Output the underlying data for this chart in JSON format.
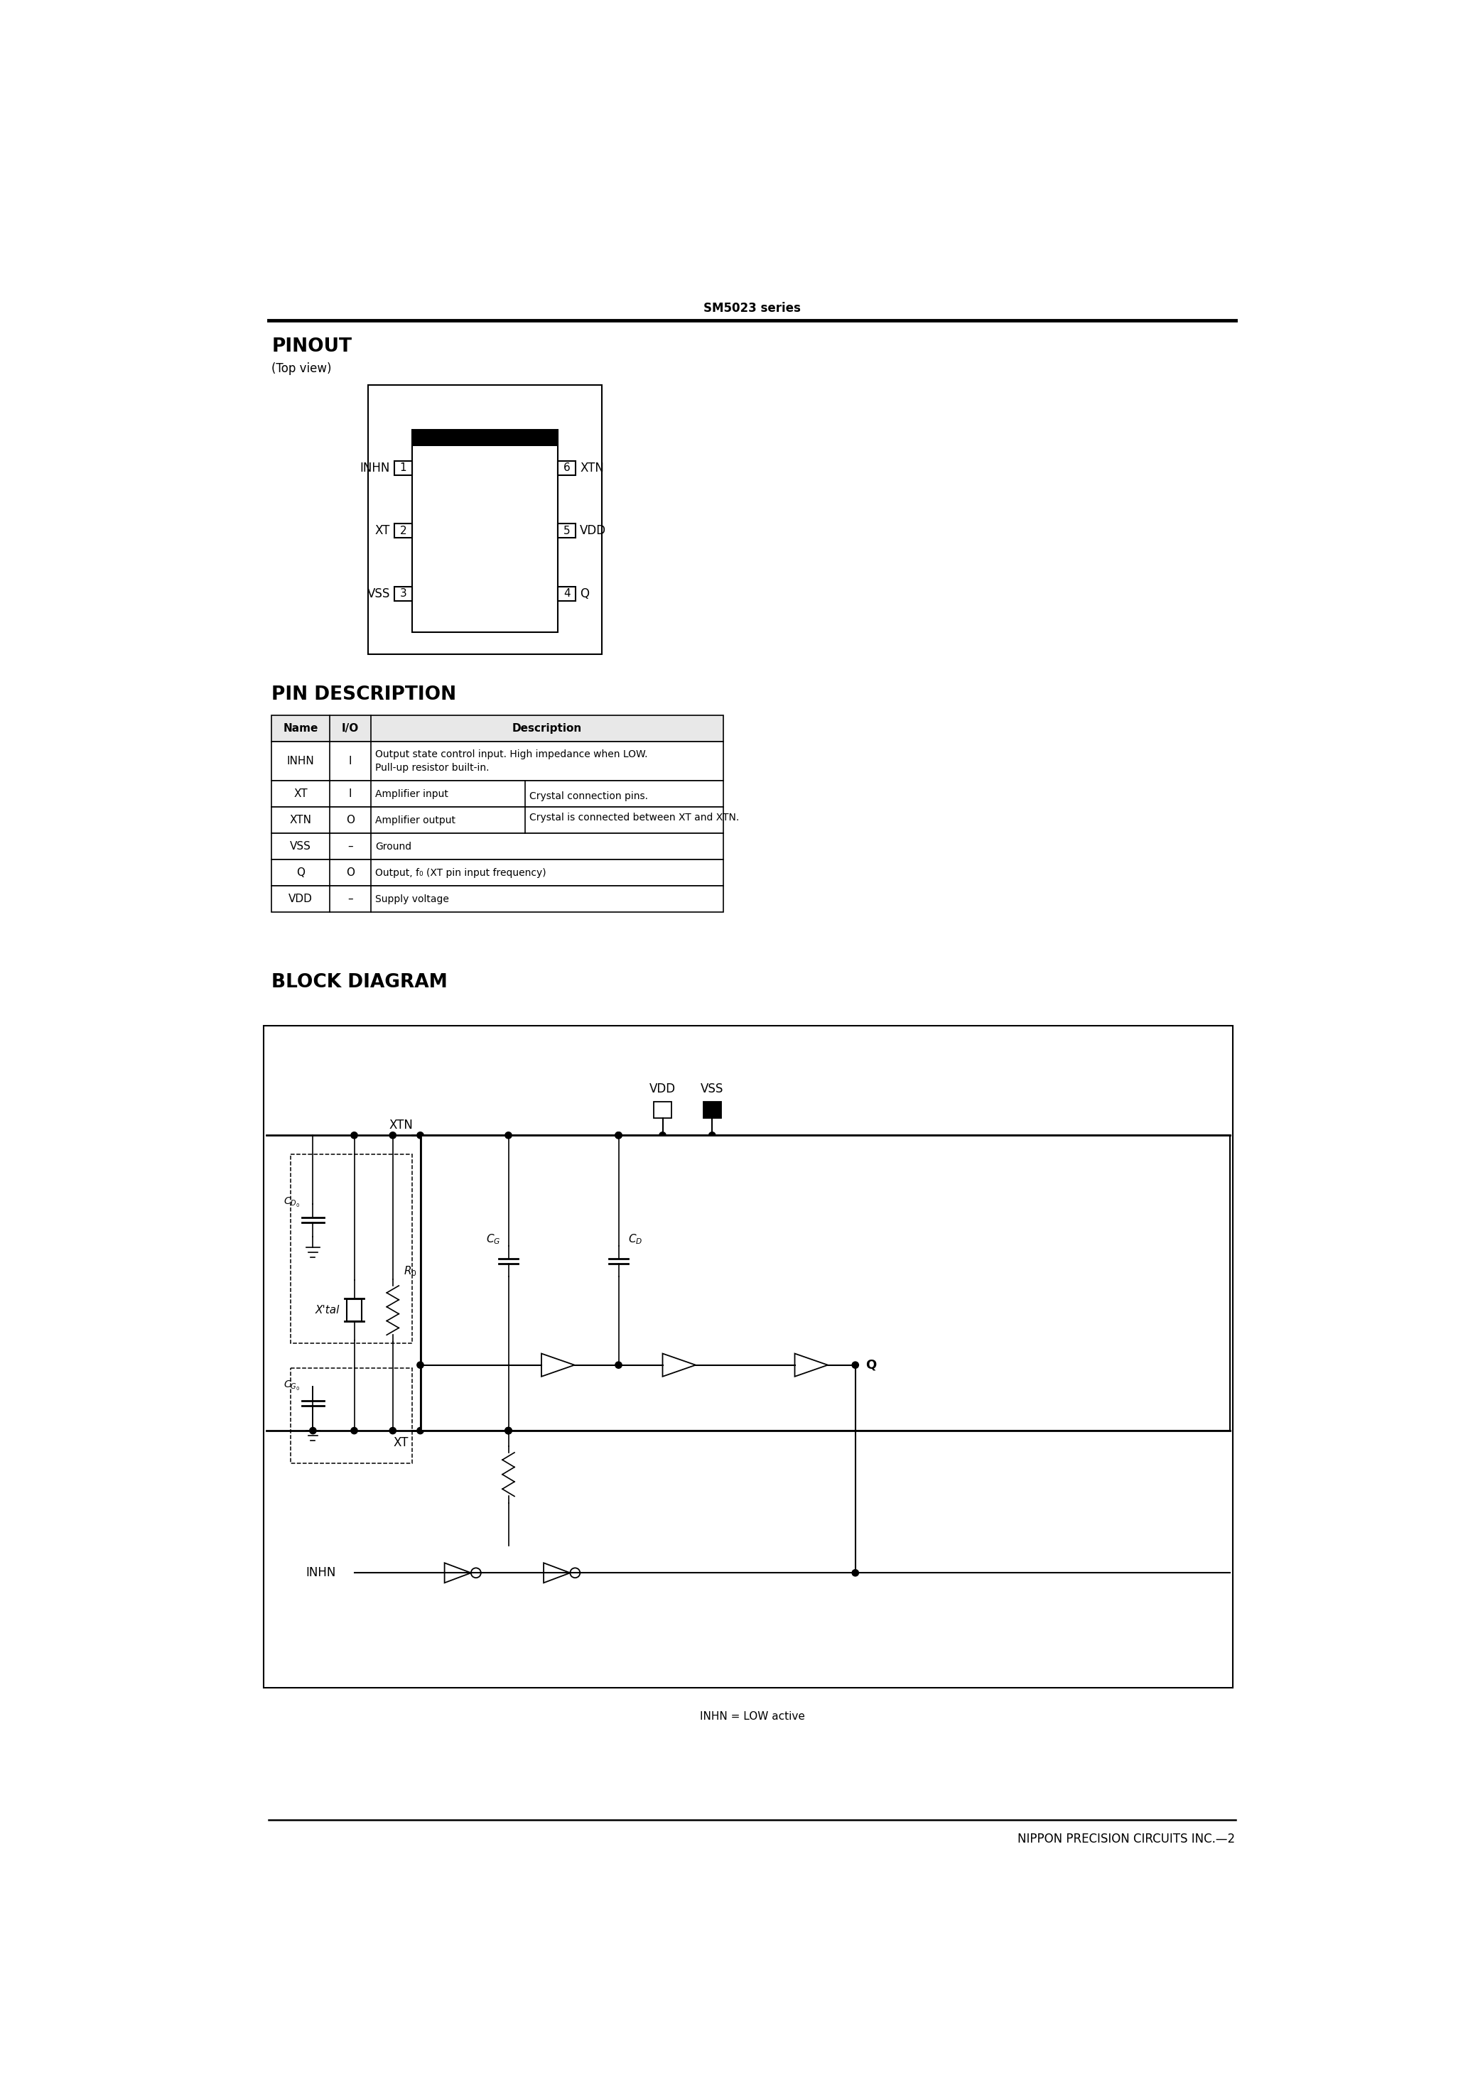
{
  "page_title": "SM5023 series",
  "footer_text": "NIPPON PRECISION CIRCUITS INC.—2",
  "section_pinout": "PINOUT",
  "section_topview": "(Top view)",
  "section_pin_desc": "PIN DESCRIPTION",
  "section_block": "BLOCK DIAGRAM",
  "block_note": "INHN = LOW active",
  "tbl_headers": [
    "Name",
    "I/O",
    "Description"
  ],
  "pin_rows": [
    {
      "name": "INHN",
      "io": "I",
      "desc1": "Output state control input. High impedance when LOW.",
      "desc2": "Pull-up resistor built-in.",
      "crystal": false
    },
    {
      "name": "XT",
      "io": "I",
      "desc1": "Amplifier input",
      "desc2": "",
      "crystal": true
    },
    {
      "name": "XTN",
      "io": "O",
      "desc1": "Amplifier output",
      "desc2": "",
      "crystal": true
    },
    {
      "name": "VSS",
      "io": "–",
      "desc1": "Ground",
      "desc2": "",
      "crystal": false
    },
    {
      "name": "Q",
      "io": "O",
      "desc1": "Output, f₀ (XT pin input frequency)",
      "desc2": "",
      "crystal": false
    },
    {
      "name": "VDD",
      "io": "–",
      "desc1": "Supply voltage",
      "desc2": "",
      "crystal": false
    }
  ],
  "crystal_note_1": "Crystal connection pins.",
  "crystal_note_2": "Crystal is connected between XT and XTN."
}
